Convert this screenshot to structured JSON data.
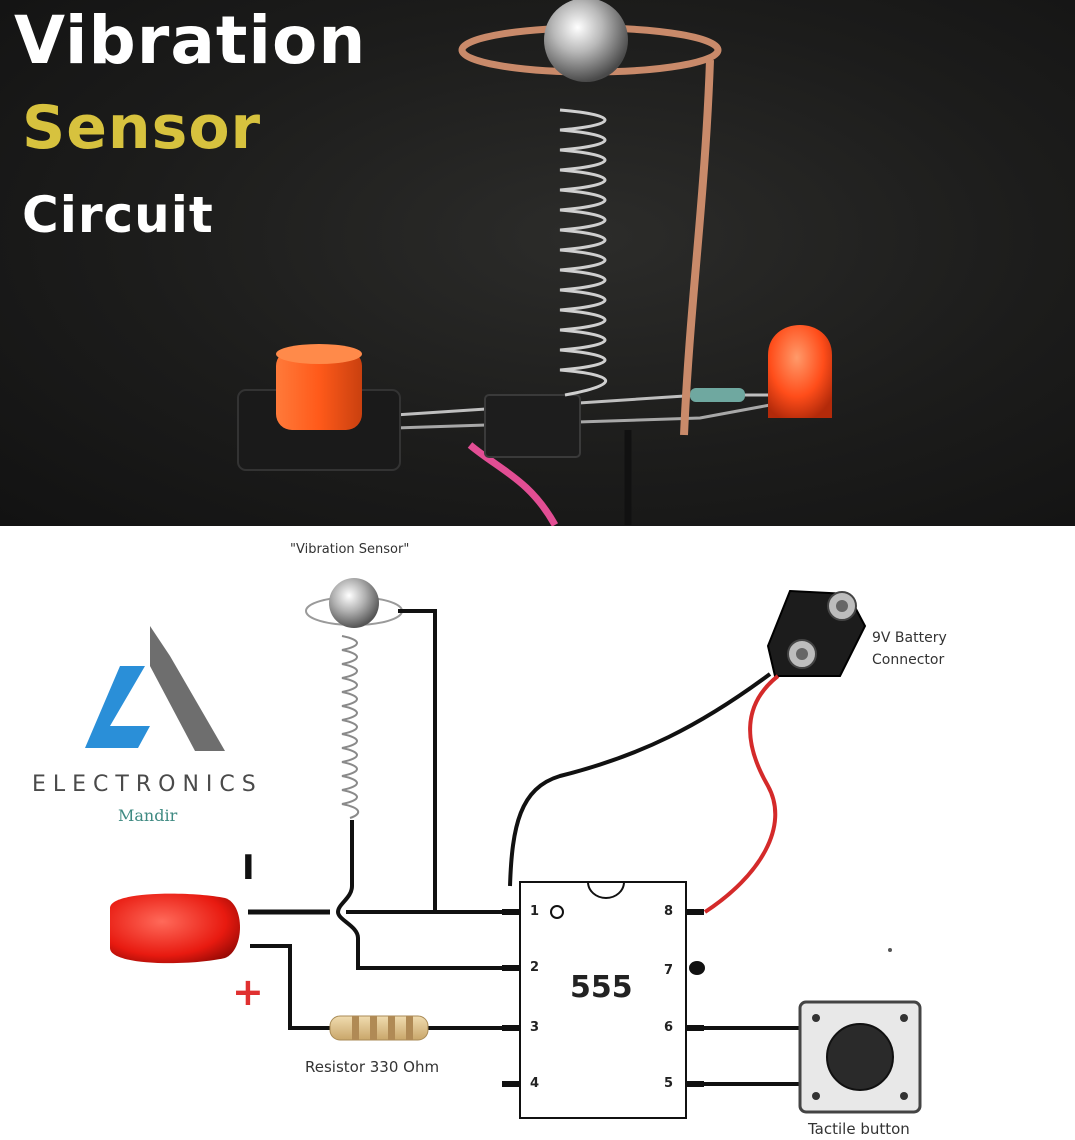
{
  "photo": {
    "title_line1": "Vibration",
    "title_line2": "Sensor",
    "title_line3": "Circuit",
    "colors": {
      "title_white": "#ffffff",
      "title_yellow": "#d7c23e",
      "led": "#ff4d1a",
      "copper": "#c98a6a"
    }
  },
  "diagram": {
    "sensor_label": "\"Vibration Sensor\"",
    "battery_label_line1": "9V Battery",
    "battery_label_line2": "Connector",
    "resistor_label": "Resistor 330 Ohm",
    "button_label": "Tactile button",
    "chip_label": "555",
    "pins": {
      "p1": "1",
      "p2": "2",
      "p3": "3",
      "p4": "4",
      "p5": "5",
      "p6": "6",
      "p7": "7",
      "p8": "8"
    },
    "led_minus": "I",
    "led_plus": "+",
    "logo": {
      "name": "ELECTRONICS",
      "sub": "Mandir"
    },
    "colors": {
      "wire_black": "#111111",
      "wire_red": "#d42a2a",
      "logo_blue": "#2a8fd8",
      "logo_grey": "#6e6e6e"
    }
  }
}
